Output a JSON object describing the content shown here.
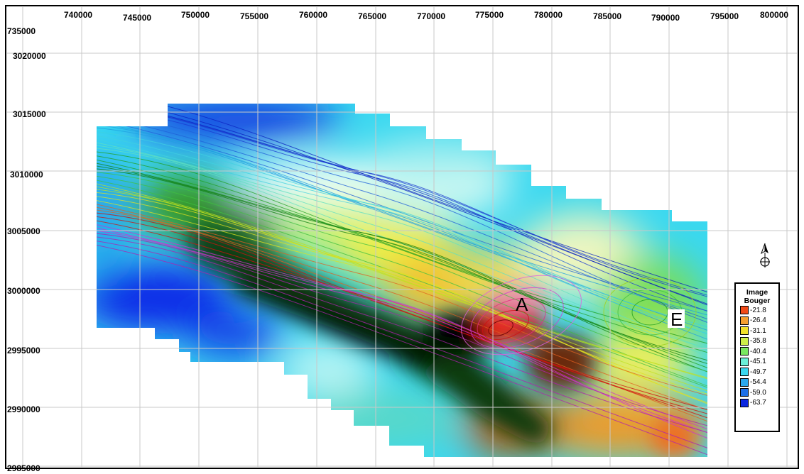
{
  "map": {
    "x_ticks": [
      "740000",
      "745000",
      "750000",
      "755000",
      "760000",
      "765000",
      "770000",
      "775000",
      "780000",
      "785000",
      "790000",
      "795000",
      "800000"
    ],
    "y_ticks": [
      "735000",
      "3020000",
      "3015000",
      "3010000",
      "3005000",
      "3000000",
      "2995000",
      "2990000",
      "2985000"
    ],
    "features": [
      {
        "label": "A"
      },
      {
        "label": "E"
      }
    ]
  },
  "legend": {
    "title_line1": "Image",
    "title_line2": "Bouger",
    "entries": [
      {
        "value": "-21.8",
        "color": "#f04a18"
      },
      {
        "value": "-26.4",
        "color": "#f5a030"
      },
      {
        "value": "-31.1",
        "color": "#f2e22a"
      },
      {
        "value": "-35.8",
        "color": "#cff04a"
      },
      {
        "value": "-40.4",
        "color": "#7ae860"
      },
      {
        "value": "-45.1",
        "color": "#6cf0d8"
      },
      {
        "value": "-49.7",
        "color": "#3ad8f0"
      },
      {
        "value": "-54.4",
        "color": "#2aa8ee"
      },
      {
        "value": "-59.0",
        "color": "#1e70e8"
      },
      {
        "value": "-63.7",
        "color": "#0a26e0"
      }
    ]
  },
  "north_arrow": {
    "icon": "north-arrow-icon"
  }
}
